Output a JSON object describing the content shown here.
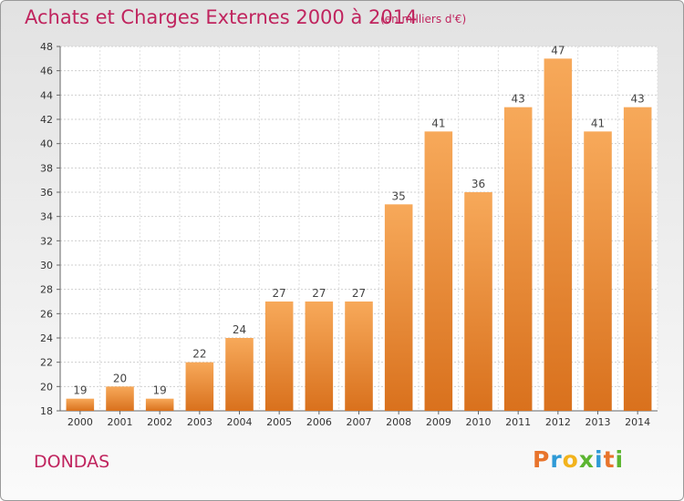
{
  "chart_data": {
    "type": "bar",
    "title": "Achats et Charges Externes 2000 à 2014",
    "subtitle": "(en milliers d'€)",
    "categories": [
      "2000",
      "2001",
      "2002",
      "2003",
      "2004",
      "2005",
      "2006",
      "2007",
      "2008",
      "2009",
      "2010",
      "2011",
      "2012",
      "2013",
      "2014"
    ],
    "values": [
      19,
      20,
      19,
      22,
      24,
      27,
      27,
      27,
      35,
      41,
      36,
      43,
      47,
      41,
      43
    ],
    "ylim": [
      18,
      48
    ],
    "yticks": [
      18,
      20,
      22,
      24,
      26,
      28,
      30,
      32,
      34,
      36,
      38,
      40,
      42,
      44,
      46,
      48
    ],
    "grid": true,
    "bar_color_top": "#f7a95a",
    "bar_color_bottom": "#d9711d"
  },
  "place": "DONDAS",
  "brand": {
    "letters": [
      "P",
      "r",
      "o",
      "x",
      "i",
      "t",
      "i"
    ],
    "colors": [
      "#e8742c",
      "#2f9ad6",
      "#f2b31c",
      "#5cb531",
      "#2f9ad6",
      "#e8742c",
      "#5cb531"
    ]
  },
  "colors": {
    "title": "#c0245e"
  }
}
